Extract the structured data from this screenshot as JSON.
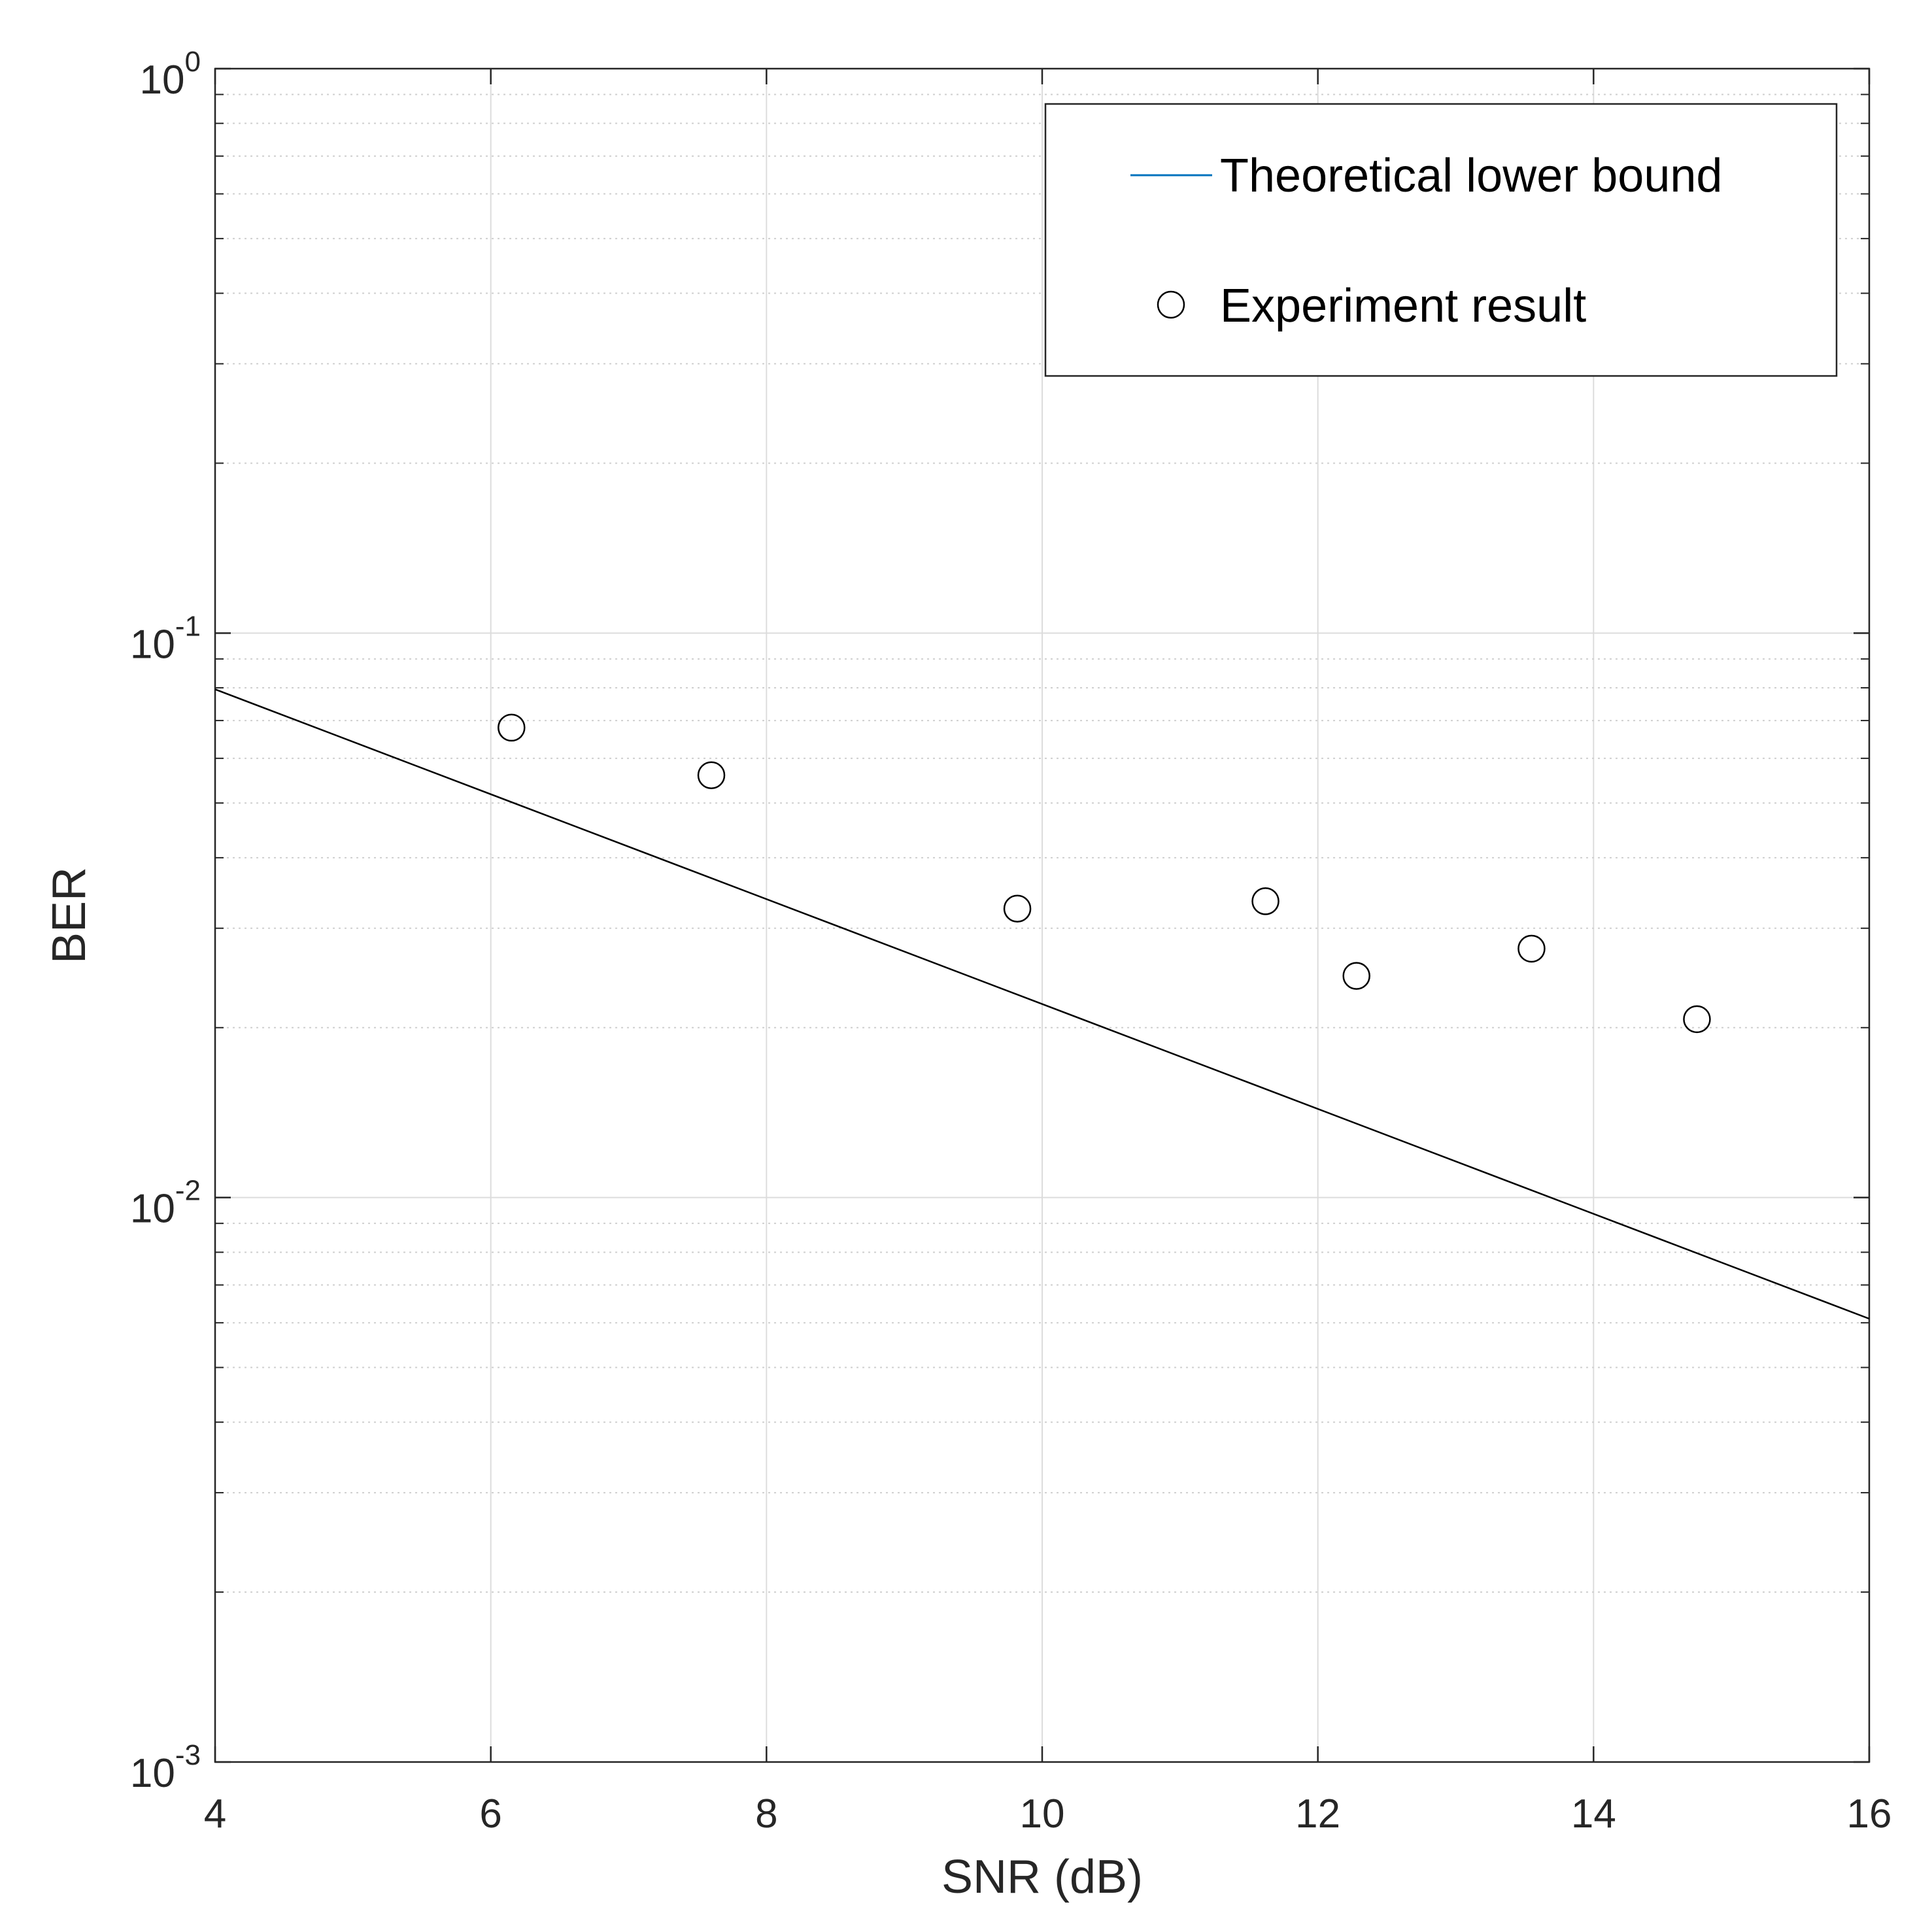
{
  "chart_data": {
    "type": "scatter",
    "title": "",
    "xlabel": "SNR (dB)",
    "ylabel": "BER",
    "xlim": [
      4,
      16
    ],
    "ylim": [
      0.001,
      1
    ],
    "y_scale": "log",
    "grid": true,
    "minor_grid": true,
    "x_ticks": [
      4,
      6,
      8,
      10,
      12,
      14,
      16
    ],
    "x_tick_labels": [
      "4",
      "6",
      "8",
      "10",
      "12",
      "14",
      "16"
    ],
    "y_ticks": [
      {
        "value": 1,
        "base": "10",
        "exponent": "0"
      },
      {
        "value": 0.1,
        "base": "10",
        "exponent": "-1"
      },
      {
        "value": 0.01,
        "base": "10",
        "exponent": "-2"
      },
      {
        "value": 0.001,
        "base": "10",
        "exponent": "-3"
      }
    ],
    "legend_position": "top-right",
    "series": [
      {
        "name": "Theoretical lower bound",
        "kind": "line",
        "color": "#000000",
        "legend_color": "#0072BD",
        "x": [
          4,
          16
        ],
        "y": [
          0.0795,
          0.0061
        ]
      },
      {
        "name": "Experiment result",
        "kind": "scatter",
        "marker": "open-circle",
        "color": "#000000",
        "x": [
          6.15,
          7.6,
          9.82,
          11.62,
          12.28,
          13.55,
          14.75
        ],
        "y": [
          0.068,
          0.056,
          0.0325,
          0.0335,
          0.0247,
          0.0276,
          0.0207
        ]
      }
    ]
  }
}
